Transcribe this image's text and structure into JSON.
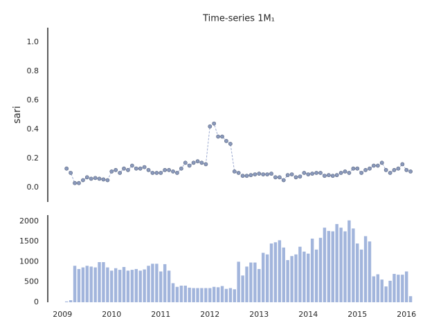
{
  "chart_data": [
    {
      "type": "line",
      "title": "Time-series 1M₁",
      "y_label": "sari",
      "color": "#8a99bb",
      "line_color": "#9aa8d0",
      "line_style": "dashed",
      "marker": "o",
      "x": [
        2009.083,
        2009.167,
        2009.25,
        2009.333,
        2009.417,
        2009.5,
        2009.583,
        2009.667,
        2009.75,
        2009.833,
        2009.917,
        2010,
        2010.083,
        2010.167,
        2010.25,
        2010.333,
        2010.417,
        2010.5,
        2010.583,
        2010.667,
        2010.75,
        2010.833,
        2010.917,
        2011,
        2011.083,
        2011.167,
        2011.25,
        2011.333,
        2011.417,
        2011.5,
        2011.583,
        2011.667,
        2011.75,
        2011.833,
        2011.917,
        2012,
        2012.083,
        2012.167,
        2012.25,
        2012.333,
        2012.417,
        2012.5,
        2012.583,
        2012.667,
        2012.75,
        2012.833,
        2012.917,
        2013,
        2013.083,
        2013.167,
        2013.25,
        2013.333,
        2013.417,
        2013.5,
        2013.583,
        2013.667,
        2013.75,
        2013.833,
        2013.917,
        2014,
        2014.083,
        2014.167,
        2014.25,
        2014.333,
        2014.417,
        2014.5,
        2014.583,
        2014.667,
        2014.75,
        2014.833,
        2014.917,
        2015,
        2015.083,
        2015.167,
        2015.25,
        2015.333,
        2015.417,
        2015.5,
        2015.583,
        2015.667,
        2015.75,
        2015.833,
        2015.917,
        2016,
        2016.083
      ],
      "values": [
        0.13,
        0.1,
        0.03,
        0.03,
        0.05,
        0.07,
        0.06,
        0.065,
        0.06,
        0.055,
        0.05,
        0.11,
        0.12,
        0.1,
        0.13,
        0.12,
        0.15,
        0.13,
        0.13,
        0.14,
        0.12,
        0.1,
        0.1,
        0.1,
        0.12,
        0.12,
        0.11,
        0.1,
        0.13,
        0.17,
        0.15,
        0.17,
        0.18,
        0.17,
        0.16,
        0.42,
        0.44,
        0.35,
        0.35,
        0.32,
        0.3,
        0.11,
        0.1,
        0.08,
        0.08,
        0.085,
        0.09,
        0.095,
        0.09,
        0.09,
        0.095,
        0.07,
        0.07,
        0.05,
        0.085,
        0.09,
        0.07,
        0.075,
        0.1,
        0.09,
        0.095,
        0.1,
        0.1,
        0.08,
        0.085,
        0.08,
        0.085,
        0.1,
        0.11,
        0.1,
        0.13,
        0.13,
        0.1,
        0.12,
        0.13,
        0.15,
        0.15,
        0.17,
        0.12,
        0.1,
        0.12,
        0.13,
        0.16,
        0.12,
        0.11
      ],
      "xlim": [
        2008.7,
        2016.25
      ],
      "ylim": [
        -0.1,
        1.1
      ],
      "yticks": [
        {
          "value": 0,
          "label": "0.0"
        },
        0.2,
        0.4,
        0.6,
        0.8,
        {
          "value": 1,
          "label": "1.0"
        }
      ]
    },
    {
      "type": "bar",
      "color": "#a2b5dc",
      "x": [
        2009.083,
        2009.167,
        2009.25,
        2009.333,
        2009.417,
        2009.5,
        2009.583,
        2009.667,
        2009.75,
        2009.833,
        2009.917,
        2010,
        2010.083,
        2010.167,
        2010.25,
        2010.333,
        2010.417,
        2010.5,
        2010.583,
        2010.667,
        2010.75,
        2010.833,
        2010.917,
        2011,
        2011.083,
        2011.167,
        2011.25,
        2011.333,
        2011.417,
        2011.5,
        2011.583,
        2011.667,
        2011.75,
        2011.833,
        2011.917,
        2012,
        2012.083,
        2012.167,
        2012.25,
        2012.333,
        2012.417,
        2012.5,
        2012.583,
        2012.667,
        2012.75,
        2012.833,
        2012.917,
        2013,
        2013.083,
        2013.167,
        2013.25,
        2013.333,
        2013.417,
        2013.5,
        2013.583,
        2013.667,
        2013.75,
        2013.833,
        2013.917,
        2014,
        2014.083,
        2014.167,
        2014.25,
        2014.333,
        2014.417,
        2014.5,
        2014.583,
        2014.667,
        2014.75,
        2014.833,
        2014.917,
        2015,
        2015.083,
        2015.167,
        2015.25,
        2015.333,
        2015.417,
        2015.5,
        2015.583,
        2015.667,
        2015.75,
        2015.833,
        2015.917,
        2016,
        2016.083
      ],
      "values": [
        20,
        50,
        900,
        820,
        860,
        900,
        880,
        860,
        990,
        990,
        860,
        780,
        840,
        800,
        870,
        780,
        800,
        820,
        780,
        810,
        900,
        950,
        950,
        760,
        940,
        780,
        470,
        380,
        410,
        410,
        360,
        350,
        350,
        350,
        350,
        350,
        380,
        370,
        400,
        330,
        350,
        320,
        1000,
        660,
        880,
        980,
        980,
        820,
        1220,
        1180,
        1450,
        1480,
        1530,
        1350,
        1040,
        1140,
        1180,
        1370,
        1250,
        1200,
        1570,
        1300,
        1590,
        1840,
        1760,
        1750,
        1930,
        1840,
        1750,
        2020,
        1820,
        1450,
        1300,
        1630,
        1500,
        640,
        690,
        560,
        390,
        530,
        700,
        680,
        680,
        760,
        150
      ],
      "xlim": [
        2008.7,
        2016.25
      ],
      "ylim": [
        0,
        2150
      ],
      "yticks": [
        0,
        500,
        1000,
        1500,
        2000
      ],
      "xticks": [
        2009,
        2010,
        2011,
        2012,
        2013,
        2014,
        2015,
        2016
      ]
    }
  ]
}
